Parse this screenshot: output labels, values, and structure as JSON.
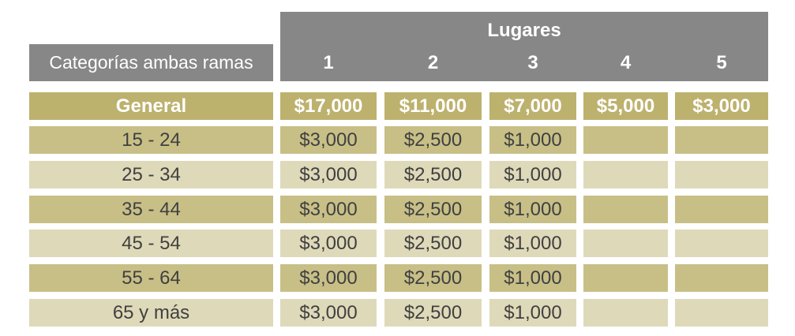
{
  "header": {
    "group_label": "Lugares",
    "category_label": "Categorías ambas ramas",
    "columns": [
      "1",
      "2",
      "3",
      "4",
      "5"
    ]
  },
  "rows": [
    {
      "label": "General",
      "values": [
        "$17,000",
        "$11,000",
        "$7,000",
        "$5,000",
        "$3,000"
      ]
    },
    {
      "label": "15 - 24",
      "values": [
        "$3,000",
        "$2,500",
        "$1,000",
        "",
        ""
      ]
    },
    {
      "label": "25 - 34",
      "values": [
        "$3,000",
        "$2,500",
        "$1,000",
        "",
        ""
      ]
    },
    {
      "label": "35 - 44",
      "values": [
        "$3,000",
        "$2,500",
        "$1,000",
        "",
        ""
      ]
    },
    {
      "label": "45 - 54",
      "values": [
        "$3,000",
        "$2,500",
        "$1,000",
        "",
        ""
      ]
    },
    {
      "label": "55 - 64",
      "values": [
        "$3,000",
        "$2,500",
        "$1,000",
        "",
        ""
      ]
    },
    {
      "label": "65 y más",
      "values": [
        "$3,000",
        "$2,500",
        "$1,000",
        "",
        ""
      ]
    }
  ],
  "colors": {
    "header_gray": "#878787",
    "general_row": "#bdb16e",
    "row_dark": "#c8bf87",
    "row_light": "#ded9b9"
  }
}
